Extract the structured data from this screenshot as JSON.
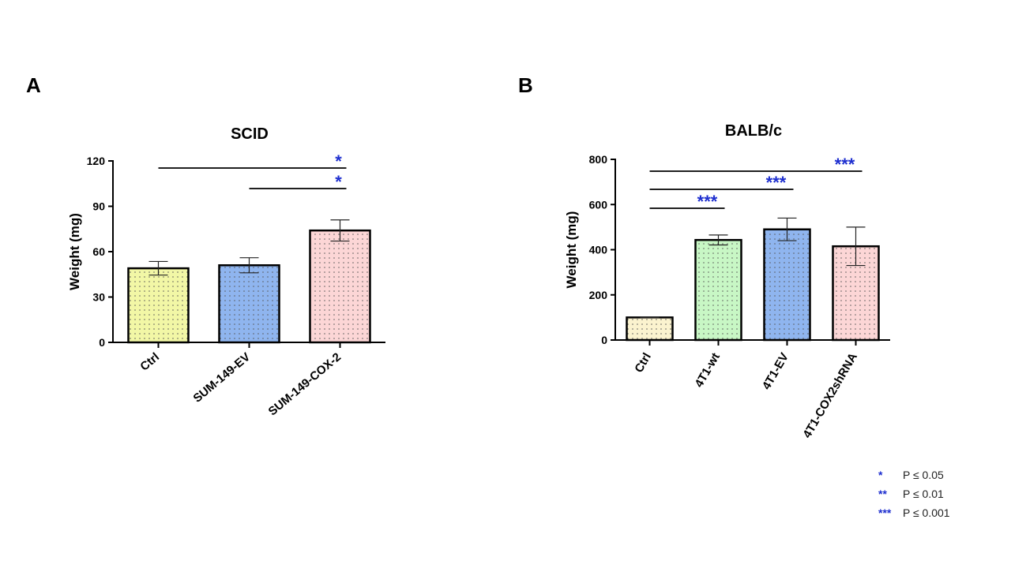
{
  "panels": {
    "a": {
      "label": "A"
    },
    "b": {
      "label": "B"
    }
  },
  "chart_data": [
    {
      "type": "bar",
      "title": "SCID",
      "xlabel": "",
      "ylabel": "Weight (mg)",
      "ylim": [
        0,
        120
      ],
      "yticks": [
        0,
        30,
        60,
        90,
        120
      ],
      "categories": [
        "Ctrl",
        "SUM-149-EV",
        "SUM-149-COX-2"
      ],
      "values": [
        49,
        51,
        74
      ],
      "errors": [
        4.5,
        5,
        7
      ],
      "bar_colors": [
        "#f2f7a6",
        "#8fb5ef",
        "#fcd6d6"
      ],
      "significance": [
        {
          "from": "Ctrl",
          "to": "SUM-149-COX-2",
          "stars": "*"
        },
        {
          "from": "SUM-149-EV",
          "to": "SUM-149-COX-2",
          "stars": "*"
        }
      ]
    },
    {
      "type": "bar",
      "title": "BALB/c",
      "xlabel": "",
      "ylabel": "Weight (mg)",
      "ylim": [
        0,
        800
      ],
      "yticks": [
        0,
        200,
        400,
        600,
        800
      ],
      "categories": [
        "Ctrl",
        "4T1-wt",
        "4T1-EV",
        "4T1-COX2shRNA"
      ],
      "values": [
        100,
        443,
        490,
        415
      ],
      "errors": [
        2,
        22,
        50,
        85
      ],
      "bar_colors": [
        "#fbf3cf",
        "#c8f7c5",
        "#8fb5ef",
        "#fcd6d6"
      ],
      "significance": [
        {
          "from": "Ctrl",
          "to": "4T1-wt",
          "stars": "***"
        },
        {
          "from": "Ctrl",
          "to": "4T1-EV",
          "stars": "***"
        },
        {
          "from": "Ctrl",
          "to": "4T1-COX2shRNA",
          "stars": "***"
        }
      ]
    }
  ],
  "legend": [
    {
      "stars": "*",
      "text": "P ≤ 0.05"
    },
    {
      "stars": "**",
      "text": "P ≤ 0.01"
    },
    {
      "stars": "***",
      "text": "P ≤ 0.001"
    }
  ]
}
